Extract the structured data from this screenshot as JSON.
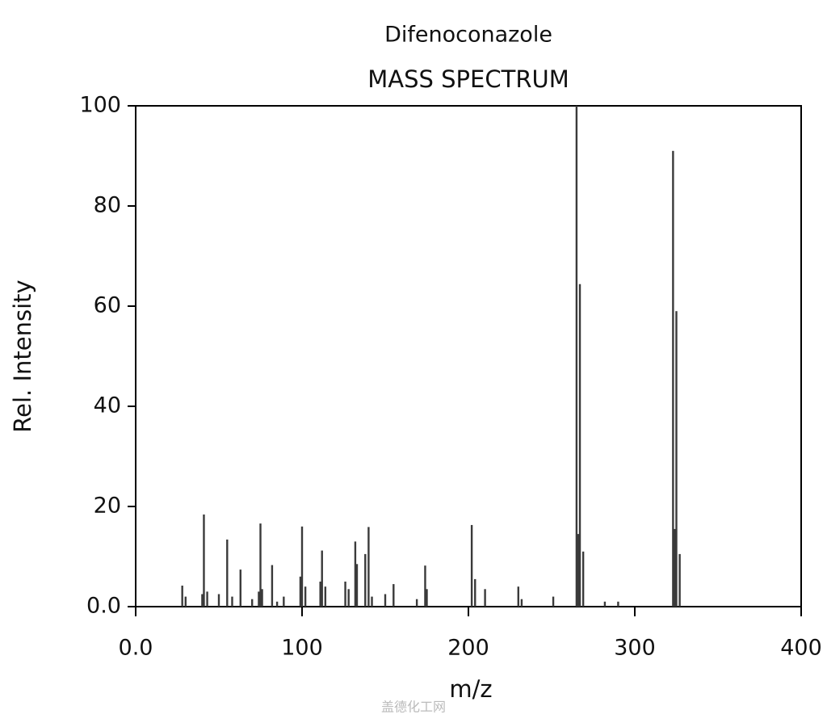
{
  "chart_data": {
    "type": "bar",
    "title": "Difenoconazole",
    "subtitle": "MASS SPECTRUM",
    "x_label": "m/z",
    "y_label": "Rel. Intensity",
    "watermark": "盖德化工网",
    "color": "#3a3a3a",
    "x": [
      28,
      30,
      40,
      41,
      43,
      50,
      55,
      58,
      63,
      70,
      74,
      75,
      76,
      82,
      85,
      89,
      99,
      100,
      102,
      111,
      112,
      114,
      126,
      128,
      132,
      133,
      138,
      140,
      142,
      150,
      155,
      169,
      174,
      175,
      202,
      204,
      210,
      230,
      232,
      251,
      265,
      266,
      267,
      269,
      282,
      290,
      323,
      324,
      325,
      327
    ],
    "values": [
      4.2,
      2,
      2.5,
      18.4,
      3,
      2.5,
      13.4,
      2,
      7.4,
      1.5,
      3,
      16.6,
      3.5,
      8.3,
      1,
      2,
      6,
      16,
      4,
      5,
      11.2,
      4,
      5,
      3.5,
      13,
      8.5,
      10.5,
      15.9,
      2,
      2.5,
      4.5,
      1.5,
      8.2,
      3.5,
      16.3,
      5.5,
      3.5,
      4,
      1.5,
      2,
      100,
      14.5,
      64.4,
      11,
      1,
      1,
      91,
      15.5,
      59,
      10.5
    ],
    "xlim": [
      0,
      400
    ],
    "xticks": [
      {
        "value": 0,
        "label": "0.0"
      },
      100,
      200,
      300,
      400
    ],
    "ylim": [
      0,
      100
    ],
    "yticks": [
      {
        "value": 0,
        "label": "0.0"
      },
      20,
      40,
      60,
      80,
      100
    ]
  }
}
